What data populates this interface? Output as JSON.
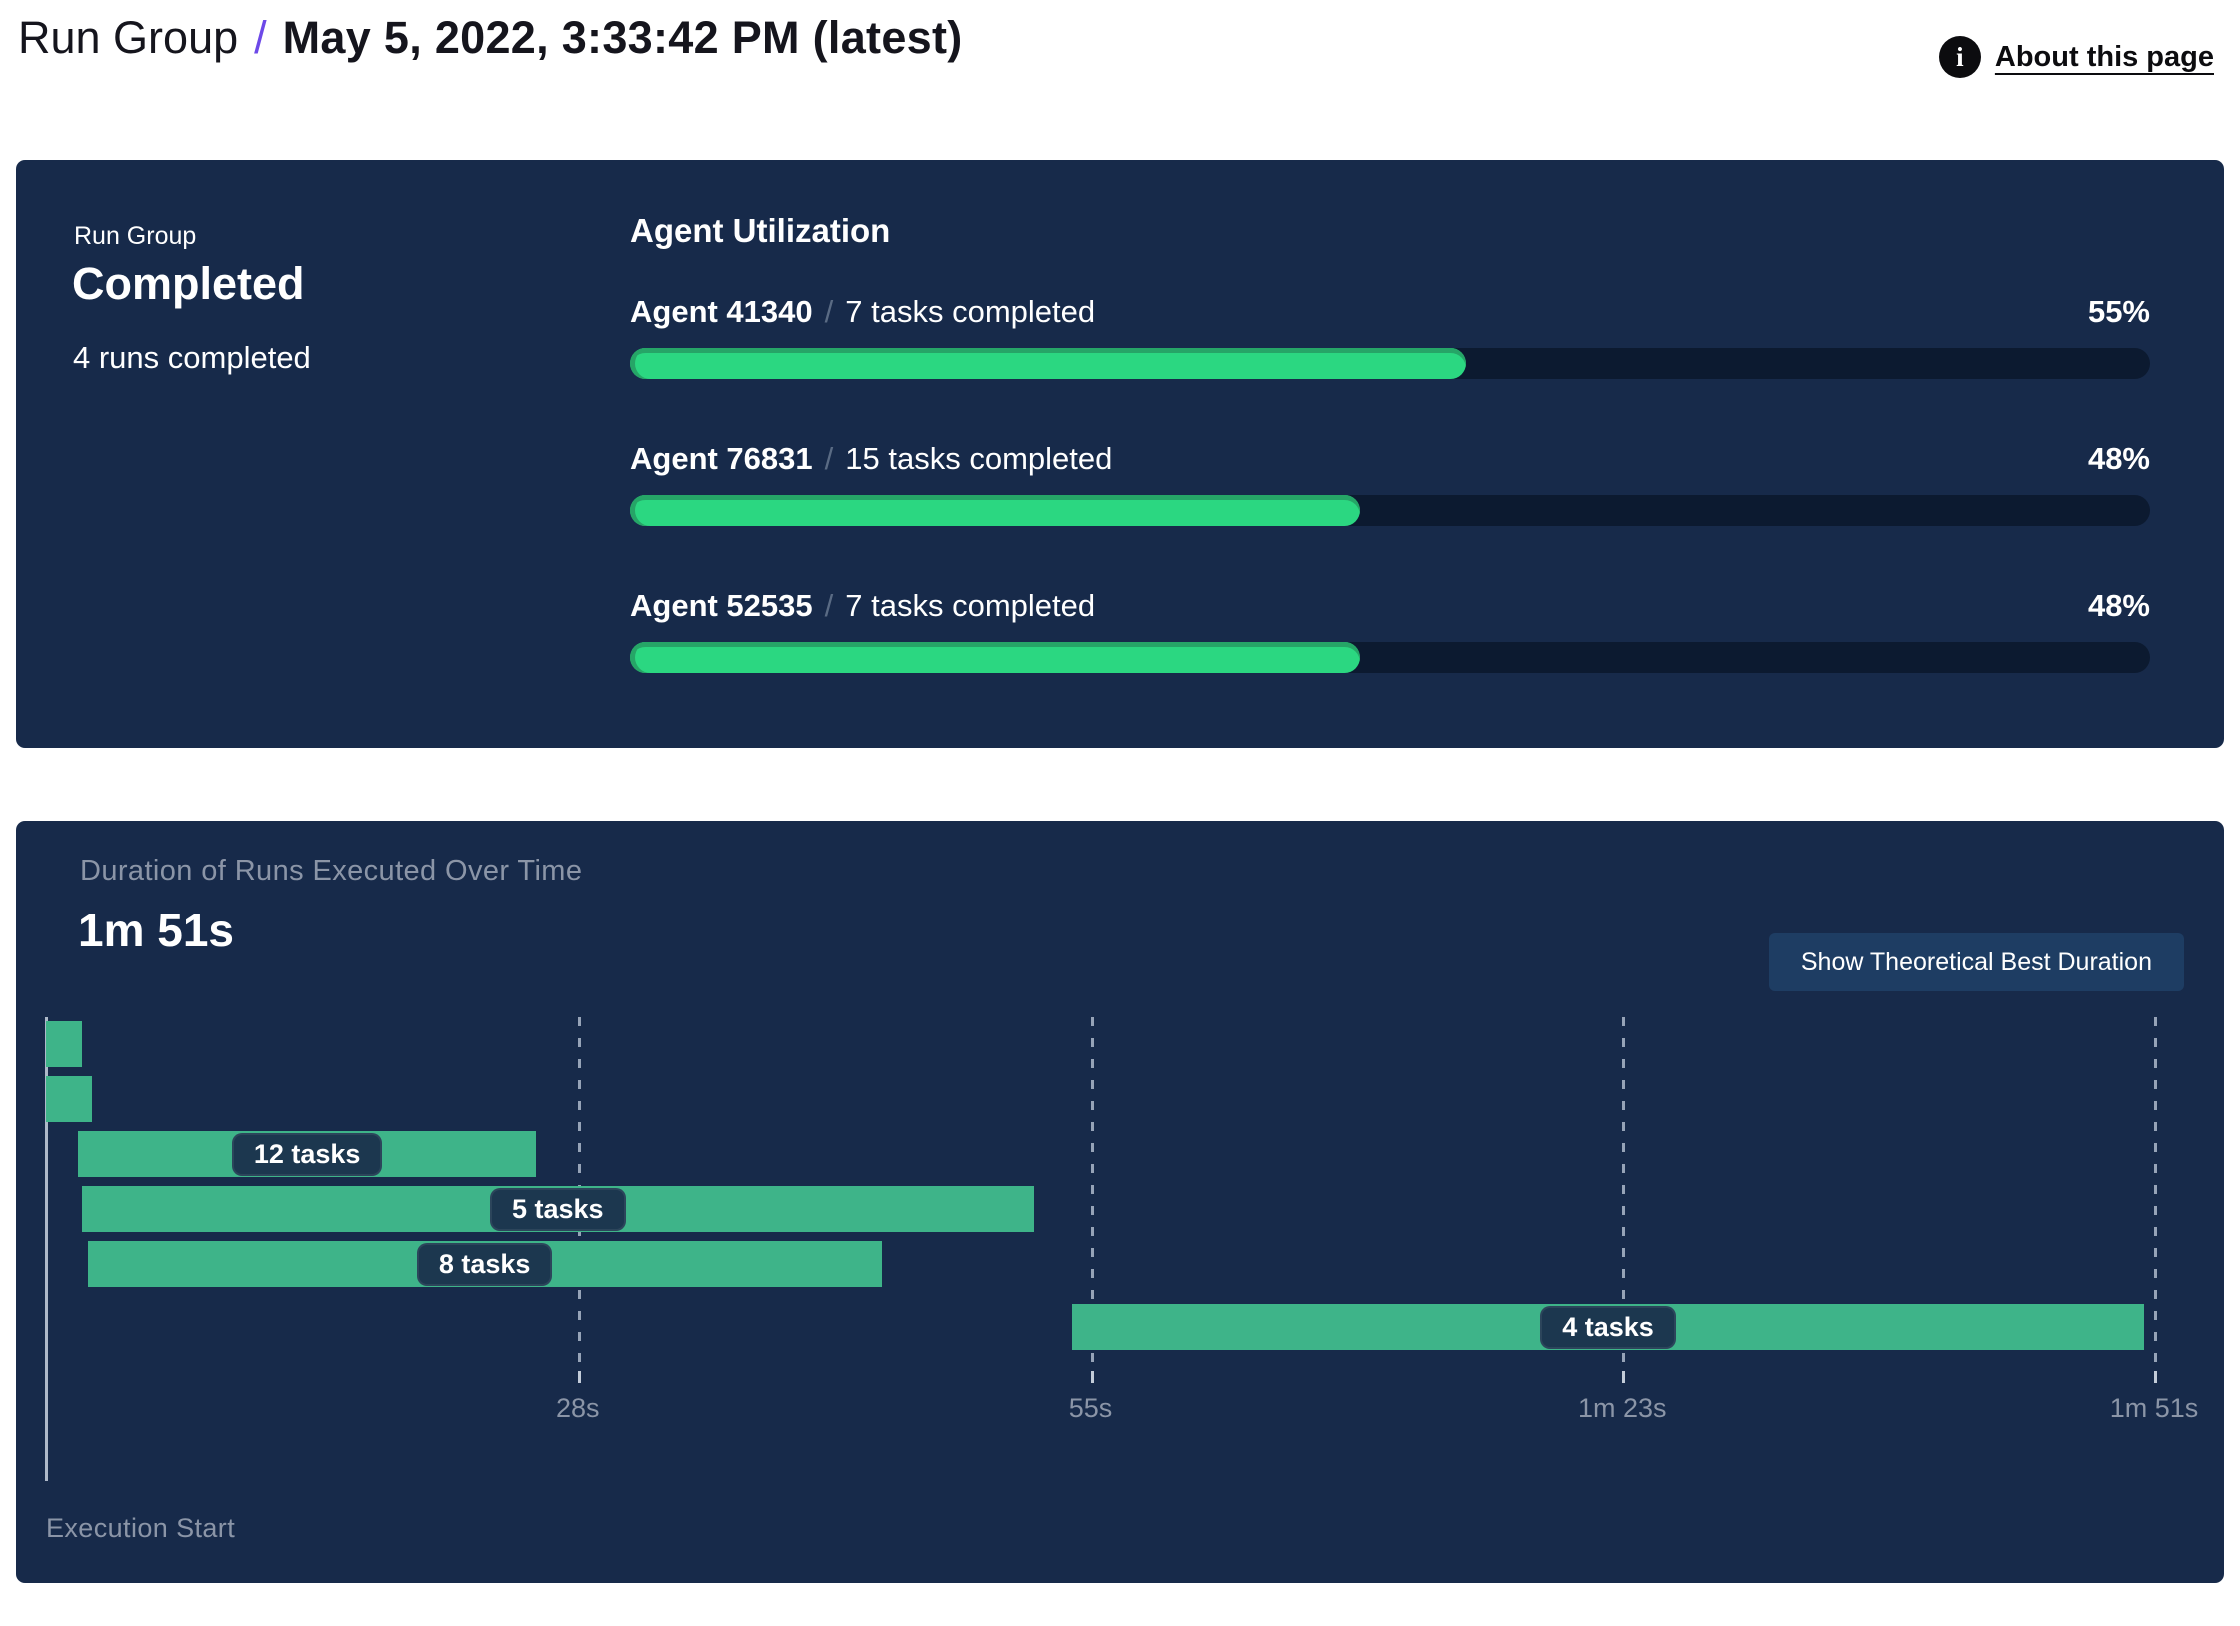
{
  "header": {
    "breadcrumb_root": "Run Group",
    "breadcrumb_separator": "/",
    "title": "May 5, 2022, 3:33:42 PM (latest)",
    "about_link": "About this page",
    "info_icon_glyph": "i"
  },
  "summary_panel": {
    "label": "Run Group",
    "status": "Completed",
    "runs_completed": "4 runs completed",
    "section_title": "Agent Utilization",
    "separator": "/",
    "agents": [
      {
        "name": "Agent 41340",
        "tasks": "7 tasks completed",
        "percent": 55
      },
      {
        "name": "Agent 76831",
        "tasks": "15 tasks completed",
        "percent": 48
      },
      {
        "name": "Agent 52535",
        "tasks": "7 tasks completed",
        "percent": 48
      }
    ]
  },
  "duration_panel": {
    "title": "Duration of Runs Executed Over Time",
    "total_duration": "1m 51s",
    "button_label": "Show Theoretical Best Duration",
    "execution_start_label": "Execution Start"
  },
  "chart_data": {
    "type": "gantt",
    "title": "Duration of Runs Executed Over Time",
    "xlabel": "Execution Start",
    "xlim_seconds": [
      0,
      111
    ],
    "grid": "dashed-vertical",
    "x_ticks": [
      {
        "label": "28s",
        "seconds": 28
      },
      {
        "label": "55s",
        "seconds": 55
      },
      {
        "label": "1m 23s",
        "seconds": 83
      },
      {
        "label": "1m 51s",
        "seconds": 111
      }
    ],
    "bars": [
      {
        "label": "",
        "start_s": 0,
        "end_s": 1.9
      },
      {
        "label": "",
        "start_s": 0,
        "end_s": 2.4
      },
      {
        "label": "12 tasks",
        "start_s": 1.7,
        "end_s": 25.8
      },
      {
        "label": "5 tasks",
        "start_s": 1.9,
        "end_s": 52
      },
      {
        "label": "8 tasks",
        "start_s": 2.2,
        "end_s": 44
      },
      {
        "label": "4 tasks",
        "start_s": 54,
        "end_s": 110.5
      }
    ]
  },
  "colors": {
    "accent_purple": "#6D49E8",
    "panel_navy": "#172A4A",
    "track_navy": "#0C1A30",
    "utilization_green": "#2BD781",
    "utilization_green_edge": "#26A567",
    "gantt_green": "#3EB489",
    "pill_navy": "#1C374F",
    "button_navy": "#1E3D63",
    "muted_gray": "#8B95A7"
  }
}
